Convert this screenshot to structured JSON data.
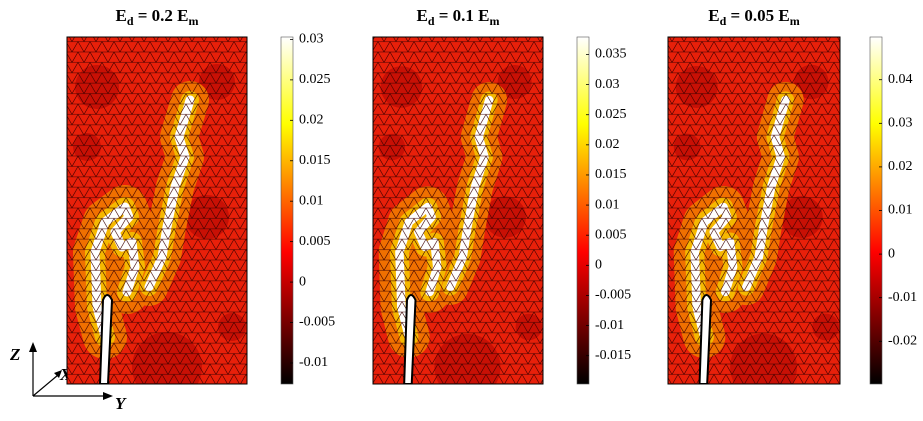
{
  "chart_data": [
    {
      "type": "contour",
      "title_parts": [
        "E",
        "d",
        " = 0.2 E",
        "m"
      ],
      "colormap": "hot",
      "clim": [
        -0.0126,
        0.0303
      ],
      "cticks": [
        -0.01,
        -0.005,
        0,
        0.005,
        0.01,
        0.015,
        0.02,
        0.025,
        0.03
      ]
    },
    {
      "type": "contour",
      "title_parts": [
        "E",
        "d",
        " = 0.1 E",
        "m"
      ],
      "colormap": "hot",
      "clim": [
        -0.0197,
        0.0379
      ],
      "cticks": [
        -0.015,
        -0.01,
        -0.005,
        0,
        0.005,
        0.01,
        0.015,
        0.02,
        0.025,
        0.03,
        0.035
      ]
    },
    {
      "type": "contour",
      "title_parts": [
        "E",
        "d",
        " = 0.05 E",
        "m"
      ],
      "colormap": "hot",
      "clim": [
        -0.0298,
        0.0498
      ],
      "cticks": [
        -0.02,
        -0.01,
        0,
        0.01,
        0.02,
        0.03,
        0.04
      ]
    }
  ],
  "axes_triad": {
    "z": "Z",
    "x": "X",
    "y": "Y"
  }
}
